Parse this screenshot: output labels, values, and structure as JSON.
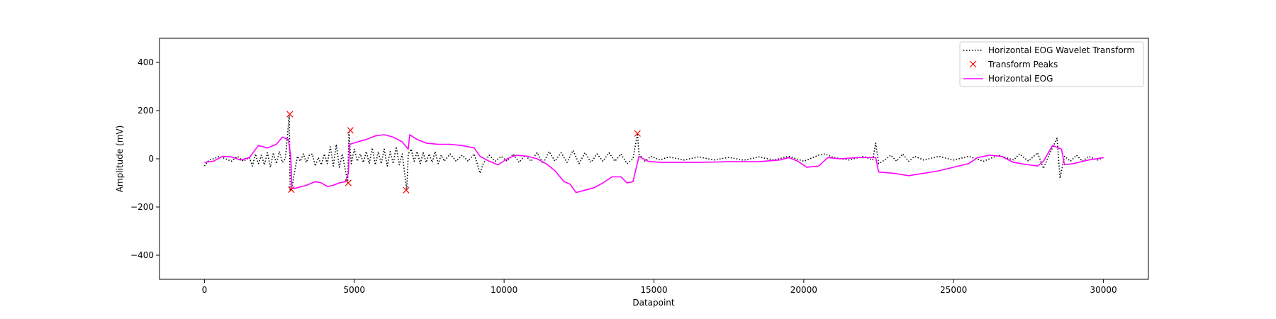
{
  "chart_data": {
    "type": "line",
    "xlabel": "Datapoint",
    "ylabel": "Amplitude (mV)",
    "xlim": [
      -1500,
      31500
    ],
    "ylim": [
      -500,
      500
    ],
    "xticks": [
      0,
      5000,
      10000,
      15000,
      20000,
      25000,
      30000
    ],
    "xtick_labels": [
      "0",
      "5000",
      "10000",
      "15000",
      "20000",
      "25000",
      "30000"
    ],
    "yticks": [
      -400,
      -200,
      0,
      200,
      400
    ],
    "ytick_labels": [
      "−400",
      "−200",
      "0",
      "200",
      "400"
    ],
    "grid": false,
    "legend_position": "top-right",
    "legend": [
      {
        "label": "Horizontal EOG Wavelet Transform",
        "style": "dotted-line",
        "color": "#000000"
      },
      {
        "label": "Transform Peaks",
        "style": "x-marker",
        "color": "#ff0000"
      },
      {
        "label": "Horizontal EOG",
        "style": "solid-line",
        "color": "#ff00ff"
      }
    ],
    "series": [
      {
        "name": "Horizontal EOG",
        "color": "#ff00ff",
        "style": "solid",
        "points": [
          [
            0,
            -15
          ],
          [
            300,
            -10
          ],
          [
            600,
            10
          ],
          [
            900,
            8
          ],
          [
            1200,
            -5
          ],
          [
            1500,
            5
          ],
          [
            1800,
            55
          ],
          [
            2100,
            45
          ],
          [
            2400,
            60
          ],
          [
            2600,
            90
          ],
          [
            2800,
            80
          ],
          [
            2880,
            10
          ],
          [
            2920,
            -125
          ],
          [
            3100,
            -120
          ],
          [
            3400,
            -110
          ],
          [
            3700,
            -95
          ],
          [
            3900,
            -100
          ],
          [
            4100,
            -115
          ],
          [
            4300,
            -110
          ],
          [
            4500,
            -100
          ],
          [
            4700,
            -95
          ],
          [
            4800,
            -60
          ],
          [
            4850,
            60
          ],
          [
            5100,
            70
          ],
          [
            5400,
            80
          ],
          [
            5700,
            95
          ],
          [
            6000,
            100
          ],
          [
            6300,
            90
          ],
          [
            6600,
            70
          ],
          [
            6800,
            40
          ],
          [
            6850,
            100
          ],
          [
            7100,
            80
          ],
          [
            7400,
            65
          ],
          [
            7800,
            60
          ],
          [
            8200,
            60
          ],
          [
            8600,
            55
          ],
          [
            9000,
            45
          ],
          [
            9200,
            10
          ],
          [
            9500,
            -10
          ],
          [
            9800,
            -25
          ],
          [
            10100,
            0
          ],
          [
            10400,
            15
          ],
          [
            10800,
            10
          ],
          [
            11100,
            0
          ],
          [
            11400,
            -20
          ],
          [
            11700,
            -50
          ],
          [
            12000,
            -95
          ],
          [
            12200,
            -105
          ],
          [
            12400,
            -140
          ],
          [
            12700,
            -130
          ],
          [
            13000,
            -120
          ],
          [
            13300,
            -100
          ],
          [
            13600,
            -75
          ],
          [
            13900,
            -75
          ],
          [
            14100,
            -100
          ],
          [
            14300,
            -95
          ],
          [
            14500,
            10
          ],
          [
            14800,
            -10
          ],
          [
            15200,
            -15
          ],
          [
            15800,
            -15
          ],
          [
            16500,
            -15
          ],
          [
            17500,
            -12
          ],
          [
            18500,
            -12
          ],
          [
            19200,
            -5
          ],
          [
            19500,
            5
          ],
          [
            19800,
            -10
          ],
          [
            20100,
            -35
          ],
          [
            20500,
            -30
          ],
          [
            20800,
            5
          ],
          [
            21200,
            0
          ],
          [
            21800,
            5
          ],
          [
            22400,
            5
          ],
          [
            22500,
            -55
          ],
          [
            23000,
            -60
          ],
          [
            23500,
            -70
          ],
          [
            24000,
            -60
          ],
          [
            24500,
            -50
          ],
          [
            25000,
            -35
          ],
          [
            25500,
            -20
          ],
          [
            25800,
            5
          ],
          [
            26200,
            15
          ],
          [
            26600,
            10
          ],
          [
            27000,
            -15
          ],
          [
            27500,
            -25
          ],
          [
            27800,
            -30
          ],
          [
            28000,
            -10
          ],
          [
            28300,
            55
          ],
          [
            28600,
            40
          ],
          [
            28700,
            -25
          ],
          [
            29000,
            -20
          ],
          [
            29500,
            -5
          ],
          [
            30000,
            5
          ]
        ]
      },
      {
        "name": "Horizontal EOG Wavelet Transform",
        "color": "#000000",
        "style": "dotted",
        "points": [
          [
            0,
            -30
          ],
          [
            150,
            -5
          ],
          [
            300,
            0
          ],
          [
            500,
            10
          ],
          [
            700,
            0
          ],
          [
            900,
            -10
          ],
          [
            1100,
            10
          ],
          [
            1300,
            -10
          ],
          [
            1500,
            5
          ],
          [
            1600,
            -30
          ],
          [
            1700,
            20
          ],
          [
            1800,
            -20
          ],
          [
            1900,
            15
          ],
          [
            2000,
            -25
          ],
          [
            2100,
            25
          ],
          [
            2200,
            -35
          ],
          [
            2300,
            25
          ],
          [
            2400,
            -20
          ],
          [
            2500,
            30
          ],
          [
            2600,
            -15
          ],
          [
            2700,
            0
          ],
          [
            2830,
            180
          ],
          [
            2860,
            -130
          ],
          [
            2920,
            -120
          ],
          [
            3000,
            -60
          ],
          [
            3100,
            10
          ],
          [
            3200,
            -10
          ],
          [
            3300,
            20
          ],
          [
            3400,
            -15
          ],
          [
            3500,
            15
          ],
          [
            3600,
            20
          ],
          [
            3700,
            -30
          ],
          [
            3800,
            5
          ],
          [
            3900,
            -25
          ],
          [
            4000,
            20
          ],
          [
            4100,
            -20
          ],
          [
            4200,
            50
          ],
          [
            4300,
            -30
          ],
          [
            4400,
            60
          ],
          [
            4500,
            -35
          ],
          [
            4600,
            20
          ],
          [
            4780,
            -100
          ],
          [
            4820,
            110
          ],
          [
            4900,
            -20
          ],
          [
            5000,
            40
          ],
          [
            5100,
            -10
          ],
          [
            5200,
            20
          ],
          [
            5300,
            -15
          ],
          [
            5400,
            30
          ],
          [
            5500,
            -20
          ],
          [
            5600,
            45
          ],
          [
            5700,
            -25
          ],
          [
            5800,
            30
          ],
          [
            5900,
            -20
          ],
          [
            6000,
            40
          ],
          [
            6100,
            -30
          ],
          [
            6200,
            30
          ],
          [
            6300,
            -20
          ],
          [
            6400,
            50
          ],
          [
            6500,
            -25
          ],
          [
            6600,
            20
          ],
          [
            6750,
            -130
          ],
          [
            6800,
            20
          ],
          [
            6900,
            40
          ],
          [
            7000,
            -10
          ],
          [
            7100,
            30
          ],
          [
            7200,
            -20
          ],
          [
            7300,
            25
          ],
          [
            7400,
            -15
          ],
          [
            7500,
            20
          ],
          [
            7600,
            -15
          ],
          [
            7700,
            30
          ],
          [
            7800,
            -20
          ],
          [
            7900,
            15
          ],
          [
            8000,
            -10
          ],
          [
            8200,
            20
          ],
          [
            8400,
            -10
          ],
          [
            8600,
            15
          ],
          [
            8800,
            -10
          ],
          [
            9000,
            20
          ],
          [
            9200,
            -60
          ],
          [
            9300,
            -20
          ],
          [
            9500,
            15
          ],
          [
            9700,
            -10
          ],
          [
            9900,
            10
          ],
          [
            10100,
            -10
          ],
          [
            10300,
            20
          ],
          [
            10500,
            -15
          ],
          [
            10700,
            15
          ],
          [
            10900,
            -10
          ],
          [
            11100,
            25
          ],
          [
            11300,
            -20
          ],
          [
            11500,
            30
          ],
          [
            11700,
            -10
          ],
          [
            11900,
            25
          ],
          [
            12100,
            -15
          ],
          [
            12300,
            35
          ],
          [
            12500,
            -20
          ],
          [
            12700,
            25
          ],
          [
            12900,
            -15
          ],
          [
            13100,
            20
          ],
          [
            13300,
            -10
          ],
          [
            13500,
            25
          ],
          [
            13700,
            -10
          ],
          [
            13900,
            20
          ],
          [
            14100,
            -20
          ],
          [
            14300,
            0
          ],
          [
            14450,
            105
          ],
          [
            14500,
            20
          ],
          [
            14700,
            -10
          ],
          [
            14900,
            10
          ],
          [
            15200,
            -5
          ],
          [
            15500,
            8
          ],
          [
            16000,
            -5
          ],
          [
            16500,
            8
          ],
          [
            17000,
            -5
          ],
          [
            17500,
            6
          ],
          [
            18000,
            -6
          ],
          [
            18500,
            8
          ],
          [
            19000,
            -5
          ],
          [
            19500,
            10
          ],
          [
            20000,
            -10
          ],
          [
            20500,
            15
          ],
          [
            20700,
            20
          ],
          [
            21000,
            5
          ],
          [
            21500,
            -5
          ],
          [
            22000,
            10
          ],
          [
            22300,
            -5
          ],
          [
            22400,
            65
          ],
          [
            22500,
            -20
          ],
          [
            22700,
            -5
          ],
          [
            22900,
            15
          ],
          [
            23100,
            -10
          ],
          [
            23300,
            20
          ],
          [
            23500,
            -10
          ],
          [
            23700,
            10
          ],
          [
            24000,
            -5
          ],
          [
            24500,
            10
          ],
          [
            25000,
            -5
          ],
          [
            25500,
            10
          ],
          [
            26000,
            -10
          ],
          [
            26500,
            15
          ],
          [
            27000,
            -5
          ],
          [
            27200,
            20
          ],
          [
            27500,
            -10
          ],
          [
            27800,
            25
          ],
          [
            28000,
            -40
          ],
          [
            28200,
            20
          ],
          [
            28450,
            85
          ],
          [
            28550,
            -80
          ],
          [
            28700,
            10
          ],
          [
            28900,
            -10
          ],
          [
            29100,
            15
          ],
          [
            29300,
            -10
          ],
          [
            29500,
            10
          ],
          [
            29800,
            -5
          ],
          [
            30000,
            5
          ]
        ]
      }
    ],
    "peaks": {
      "name": "Transform Peaks",
      "color": "#ff0000",
      "points": [
        [
          2850,
          185
        ],
        [
          2900,
          -128
        ],
        [
          4800,
          -100
        ],
        [
          4870,
          118
        ],
        [
          6730,
          -130
        ],
        [
          14450,
          105
        ]
      ]
    }
  }
}
